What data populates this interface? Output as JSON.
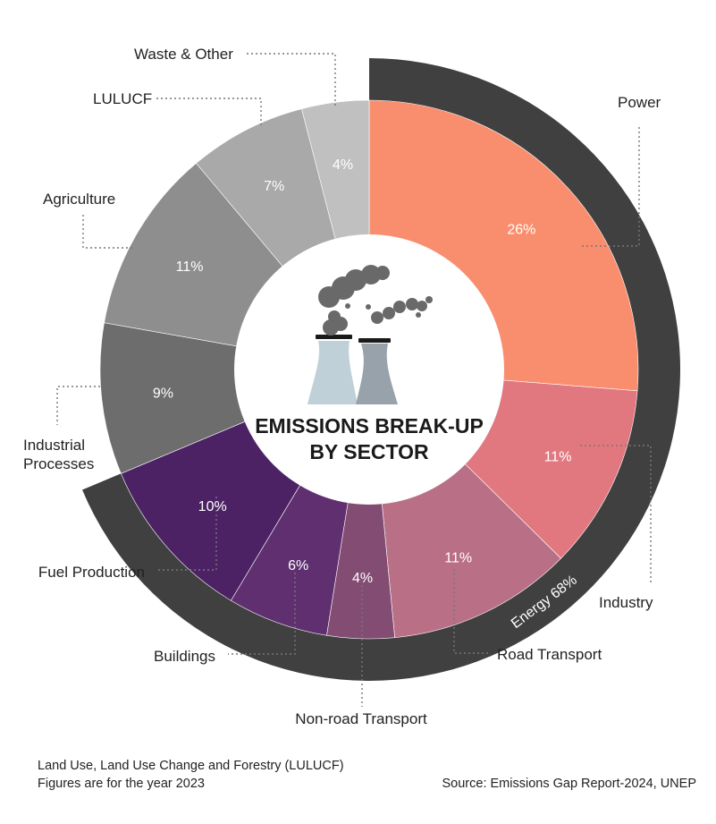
{
  "chart_data": {
    "type": "pie",
    "title": "EMISSIONS BREAK-UP BY SECTOR",
    "group": {
      "label": "Energy 68%",
      "color": "#404040"
    },
    "slices": [
      {
        "name": "Power",
        "label": "26%",
        "value": 26,
        "color": "#F98E6E"
      },
      {
        "name": "Industry",
        "label": "11%",
        "value": 11,
        "color": "#E2787F"
      },
      {
        "name": "Road Transport",
        "label": "11%",
        "value": 11,
        "color": "#B96F86"
      },
      {
        "name": "Non-road Transport",
        "label": "4%",
        "value": 4,
        "color": "#834C72"
      },
      {
        "name": "Buildings",
        "label": "6%",
        "value": 6,
        "color": "#602F6F"
      },
      {
        "name": "Fuel Production",
        "label": "10%",
        "value": 10,
        "color": "#4C2265"
      },
      {
        "name": "Industrial Processes",
        "label": "9%",
        "value": 9,
        "color": "#6D6D6D"
      },
      {
        "name": "Agriculture",
        "label": "11%",
        "value": 11,
        "color": "#8E8E8E"
      },
      {
        "name": "LULUCF",
        "label": "7%",
        "value": 7,
        "color": "#A9A9A9"
      },
      {
        "name": "Waste & Other",
        "label": "4%",
        "value": 4,
        "color": "#C0C0C0"
      }
    ]
  },
  "footnote": {
    "line1": "Land Use, Land Use Change and Forestry (LULUCF)",
    "line2": "Figures are for the year 2023"
  },
  "source": "Source: Emissions Gap Report-2024, UNEP",
  "colors": {
    "smoke": "#696969",
    "tower_light": "#BFD0D8",
    "tower_dark": "#98A2AB",
    "cap": "#1a1a1a"
  }
}
